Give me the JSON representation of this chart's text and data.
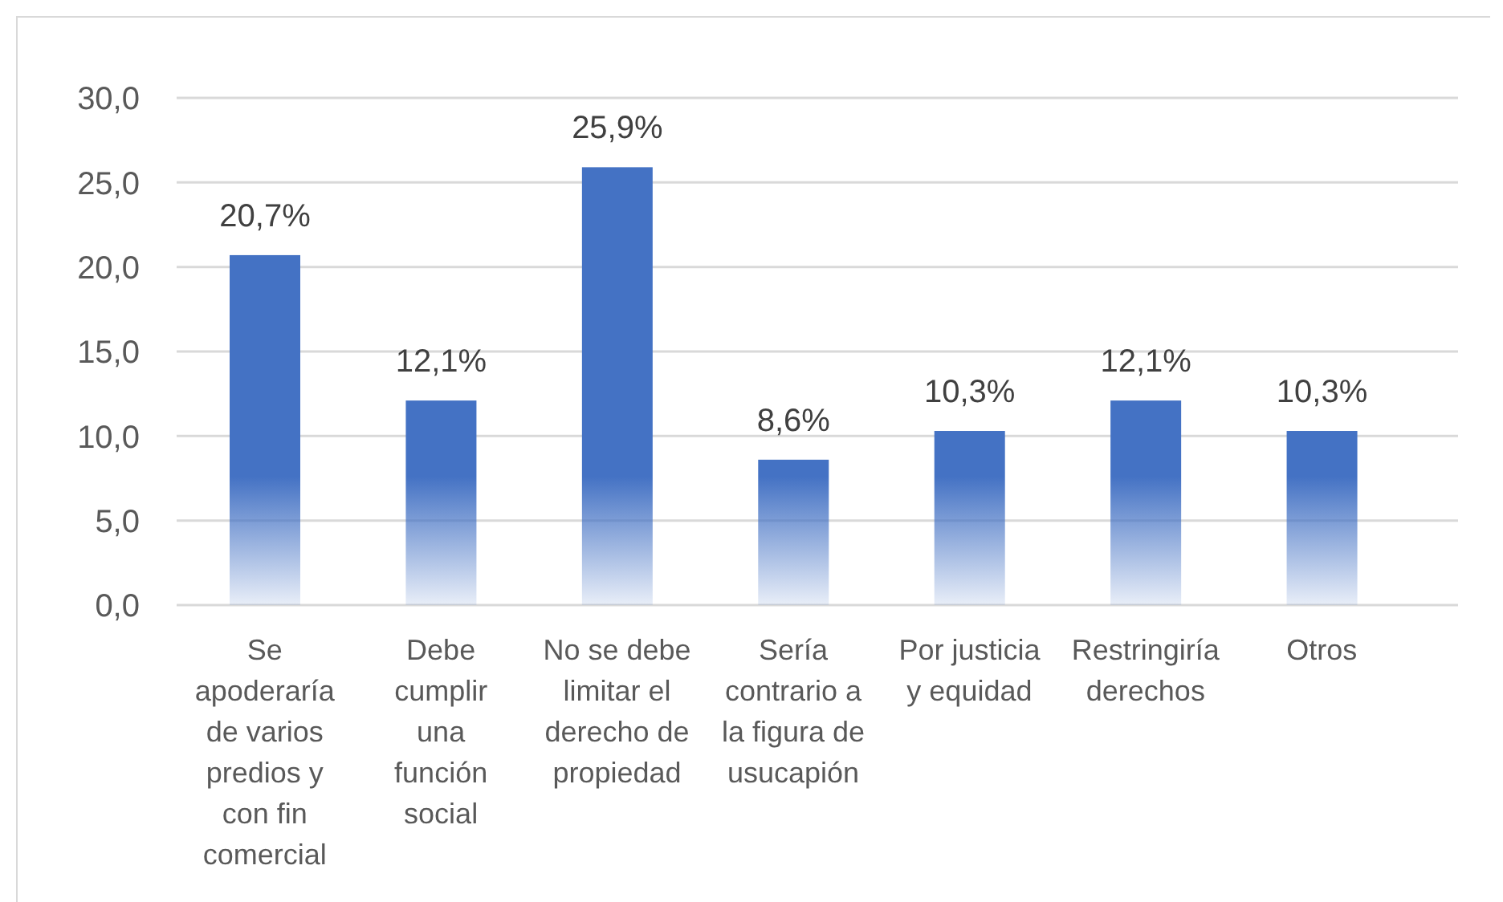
{
  "chart_data": {
    "type": "bar",
    "categories": [
      "Se apoderaría de varios predios y con fin comercial",
      "Debe cumplir una función social",
      "No se debe limitar el derecho de propiedad",
      "Sería contrario a la figura de usucapión",
      "Por justicia y equidad",
      "Restringiría derechos",
      "Otros"
    ],
    "values": [
      20.7,
      12.1,
      25.9,
      8.6,
      10.3,
      12.1,
      10.3
    ],
    "value_labels": [
      "20,7%",
      "12,1%",
      "25,9%",
      "8,6%",
      "10,3%",
      "12,1%",
      "10,3%"
    ],
    "color": "#4472c4",
    "ylim": [
      0,
      30
    ],
    "yticks": [
      {
        "value": 0,
        "label": "0,0"
      },
      {
        "value": 5,
        "label": "5,0"
      },
      {
        "value": 10,
        "label": "10,0"
      },
      {
        "value": 15,
        "label": "15,0"
      },
      {
        "value": 20,
        "label": "20,0"
      },
      {
        "value": 25,
        "label": "25,0"
      },
      {
        "value": 30,
        "label": "30,0"
      }
    ],
    "grid": "y"
  }
}
